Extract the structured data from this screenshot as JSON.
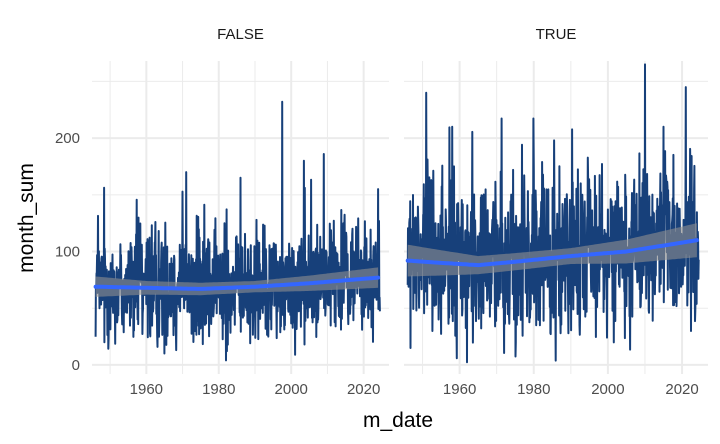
{
  "chart_data": {
    "type": "line",
    "xlabel": "m_date",
    "ylabel": "month_sum",
    "xlim": [
      1945,
      2027
    ],
    "ylim": [
      -8,
      268
    ],
    "x_ticks": [
      "1960",
      "1980",
      "2000",
      "2020"
    ],
    "y_ticks": [
      "0",
      "100",
      "200"
    ],
    "grid": true,
    "colors": {
      "line": "#17407a",
      "trend": "#3366ff",
      "band": "#8f8f8f",
      "grid": "#ebebeb"
    },
    "panels": [
      {
        "strip_label": "FALSE",
        "start_year": 1946,
        "end_year": 2024,
        "approx_range": [
          4,
          232
        ],
        "peaks": [
          [
            1997.5,
            232
          ],
          [
            2009,
            186
          ],
          [
            2003.5,
            180
          ],
          [
            2024,
            155
          ],
          [
            1971,
            170
          ],
          [
            1986,
            165
          ]
        ],
        "trend": {
          "x": [
            1946,
            1960,
            1975,
            1990,
            2005,
            2024
          ],
          "y": [
            69,
            68,
            67,
            69,
            72,
            77
          ]
        },
        "band_halfwidth": {
          "x": [
            1946,
            1960,
            1990,
            2024
          ],
          "y": [
            9,
            6,
            5,
            9
          ]
        }
      },
      {
        "strip_label": "TRUE",
        "start_year": 1946,
        "end_year": 2024,
        "approx_range": [
          0,
          265
        ],
        "peaks": [
          [
            2010,
            265
          ],
          [
            2021,
            245
          ],
          [
            1951,
            240
          ],
          [
            1985.5,
            198
          ],
          [
            2015,
            210
          ],
          [
            1958,
            210
          ]
        ],
        "trend": {
          "x": [
            1946,
            1955,
            1965,
            1975,
            1990,
            2005,
            2024
          ],
          "y": [
            92,
            90,
            88,
            91,
            96,
            100,
            110
          ]
        },
        "band_halfwidth": {
          "x": [
            1946,
            1965,
            1990,
            2024
          ],
          "y": [
            14,
            8,
            7,
            15
          ]
        }
      }
    ]
  }
}
